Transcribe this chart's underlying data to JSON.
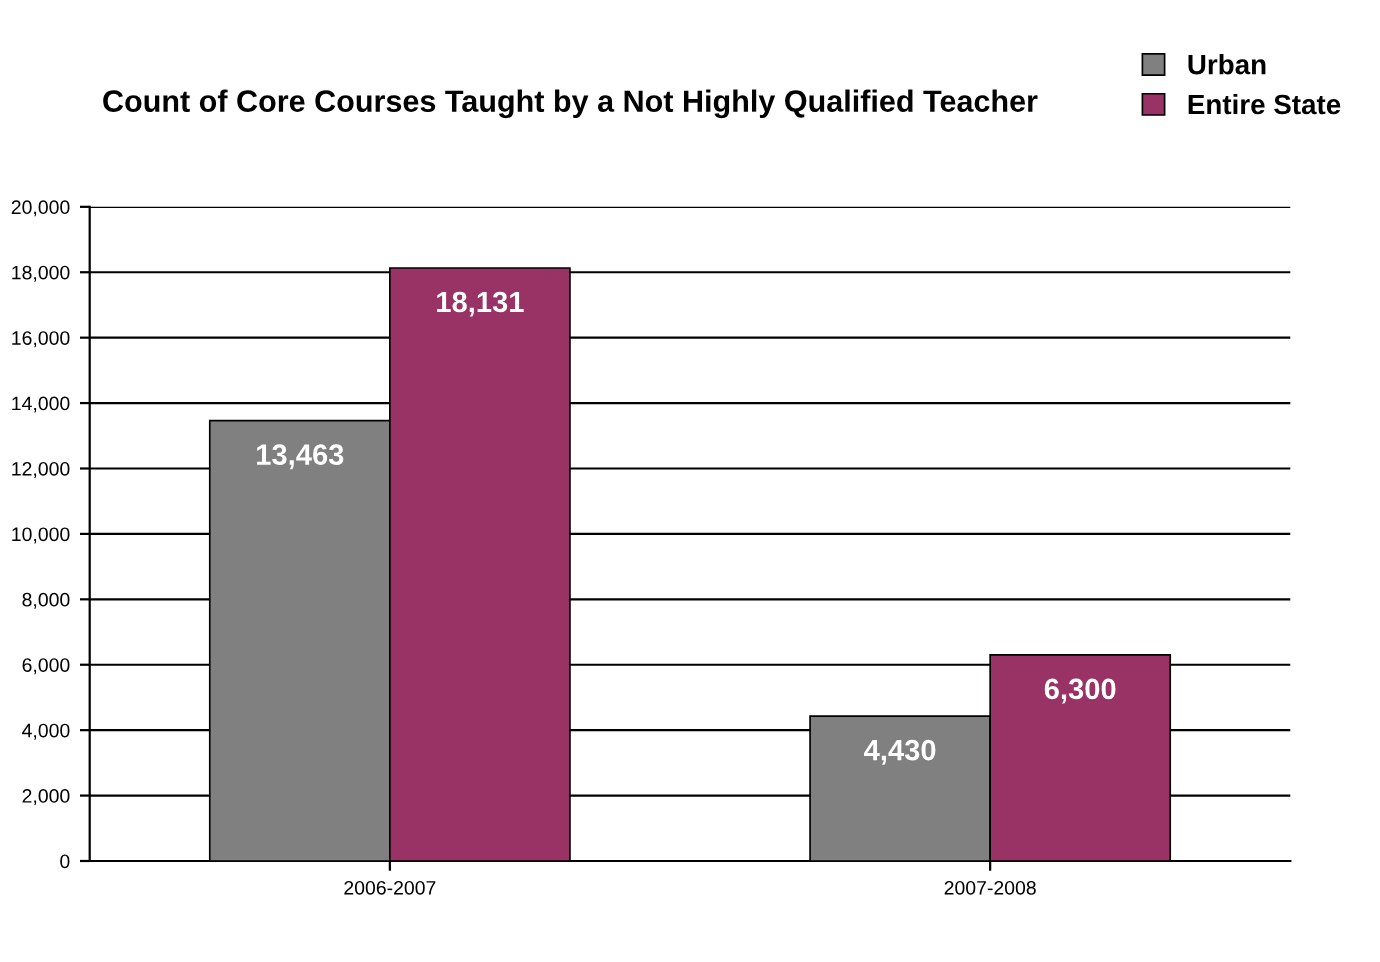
{
  "chart_data": {
    "type": "bar",
    "title": "Count of Core Courses Taught by a Not Highly Qualified Teacher",
    "categories": [
      "2006-2007",
      "2007-2008"
    ],
    "series": [
      {
        "name": "Urban",
        "color": "#808080",
        "values": [
          13463,
          4430
        ],
        "value_labels": [
          "13,463",
          "4,430"
        ]
      },
      {
        "name": "Entire State",
        "color": "#993366",
        "values": [
          18131,
          6300
        ],
        "value_labels": [
          "18,131",
          "6,300"
        ]
      }
    ],
    "ylim": [
      0,
      20000
    ],
    "yticks": [
      0,
      {
        "value": 2000,
        "label": "2,000"
      },
      {
        "value": 4000,
        "label": "4,000"
      },
      {
        "value": 6000,
        "label": "6,000"
      },
      {
        "value": 8000,
        "label": "8,000"
      },
      {
        "value": 10000,
        "label": "10,000"
      },
      {
        "value": 12000,
        "label": "12,000"
      },
      {
        "value": 14000,
        "label": "14,000"
      },
      {
        "value": 16000,
        "label": "16,000"
      },
      {
        "value": 18000,
        "label": "18,000"
      },
      {
        "value": 20000,
        "label": "20,000"
      }
    ],
    "grid": "y",
    "legend": "top right"
  }
}
